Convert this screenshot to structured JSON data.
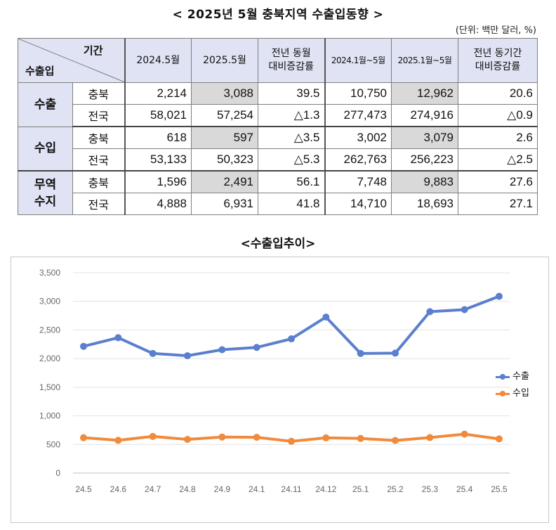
{
  "title": "< 2025년  5월  충북지역  수출입동향 >",
  "unit": "(단위: 백만 달러, %)",
  "table": {
    "corner_period": "기간",
    "corner_trade": "수출입",
    "headers": [
      "2024.5월",
      "2025.5월",
      "전년 동월\n대비증감률",
      "2024.1월~5월",
      "2025.1월~5월",
      "전년 동기간\n대비증감률"
    ],
    "groups": [
      {
        "name": "수출",
        "rows": [
          {
            "region": "충북",
            "values": [
              "2,214",
              "3,088",
              "39.5",
              "10,750",
              "12,962",
              "20.6"
            ]
          },
          {
            "region": "전국",
            "values": [
              "58,021",
              "57,254",
              "△1.3",
              "277,473",
              "274,916",
              "△0.9"
            ]
          }
        ]
      },
      {
        "name": "수입",
        "rows": [
          {
            "region": "충북",
            "values": [
              "618",
              "597",
              "△3.5",
              "3,002",
              "3,079",
              "2.6"
            ]
          },
          {
            "region": "전국",
            "values": [
              "53,133",
              "50,323",
              "△5.3",
              "262,763",
              "256,223",
              "△2.5"
            ]
          }
        ]
      },
      {
        "name": "무역\n수지",
        "rows": [
          {
            "region": "충북",
            "values": [
              "1,596",
              "2,491",
              "56.1",
              "7,748",
              "9,883",
              "27.6"
            ]
          },
          {
            "region": "전국",
            "values": [
              "4,888",
              "6,931",
              "41.8",
              "14,710",
              "18,693",
              "27.1"
            ]
          }
        ]
      }
    ],
    "highlight_color": "#d9d9d9",
    "header_color": "#dfe3f3"
  },
  "chart_title": "<수출입추이>",
  "chart_data": {
    "type": "line",
    "title": "<수출입추이>",
    "categories": [
      "24.5",
      "24.6",
      "24.7",
      "24.8",
      "24.9",
      "24.1",
      "24.11",
      "24.12",
      "25.1",
      "25.2",
      "25.3",
      "25.4",
      "25.5"
    ],
    "series": [
      {
        "name": "수출",
        "color": "#5b7fcf",
        "values": [
          2214,
          2365,
          2090,
          2050,
          2155,
          2195,
          2345,
          2725,
          2090,
          2095,
          2820,
          2855,
          3088
        ]
      },
      {
        "name": "수입",
        "color": "#f08a3c",
        "values": [
          618,
          572,
          640,
          588,
          630,
          625,
          555,
          615,
          605,
          570,
          620,
          680,
          597
        ]
      }
    ],
    "ylim": [
      0,
      3500
    ],
    "yticks": [
      0,
      500,
      1000,
      1500,
      2000,
      2500,
      3000,
      3500
    ],
    "ytick_labels": [
      "0",
      "500",
      "1,000",
      "1,500",
      "2,000",
      "2,500",
      "3,000",
      "3,500"
    ],
    "grid": true,
    "legend_position": "right"
  }
}
